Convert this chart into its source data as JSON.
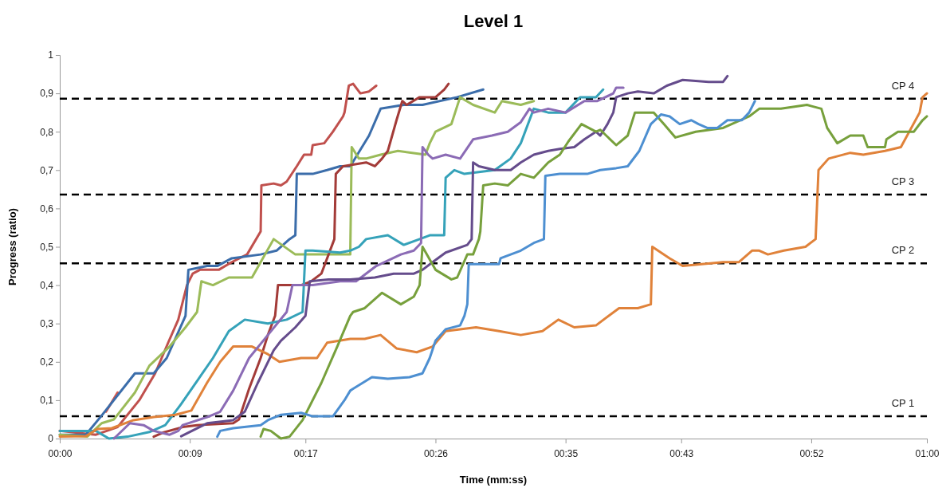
{
  "chart_data": {
    "type": "line",
    "title": "Level 1",
    "xlabel": "Time (mm:ss)",
    "ylabel": "Progress (ratio)",
    "xlim": [
      0,
      60
    ],
    "xticks": [
      {
        "value": 0,
        "label": "00:00"
      },
      {
        "value": 9,
        "label": "00:09"
      },
      {
        "value": 17,
        "label": "00:17"
      },
      {
        "value": 26,
        "label": "00:26"
      },
      {
        "value": 35,
        "label": "00:35"
      },
      {
        "value": 43,
        "label": "00:43"
      },
      {
        "value": 52,
        "label": "00:52"
      },
      {
        "value": 60,
        "label": "01:00"
      }
    ],
    "ylim": [
      0,
      1
    ],
    "yticks": [
      0,
      {
        "value": 0.1,
        "label": "0,1"
      },
      {
        "value": 0.2,
        "label": "0,2"
      },
      {
        "value": 0.3,
        "label": "0,3"
      },
      {
        "value": 0.4,
        "label": "0,4"
      },
      {
        "value": 0.5,
        "label": "0,5"
      },
      {
        "value": 0.6,
        "label": "0,6"
      },
      {
        "value": 0.7,
        "label": "0,7"
      },
      {
        "value": 0.8,
        "label": "0,8"
      },
      {
        "value": 0.9,
        "label": "0,9"
      },
      1
    ],
    "series": [
      {
        "color": "#c0504d",
        "x": [
          0,
          2.5,
          4,
          5.5,
          6.6,
          7.5,
          8.2,
          8.8,
          9.2,
          9.7,
          11,
          11.9,
          12.96,
          13.9,
          13.95,
          14.8,
          15.3,
          15.7,
          16.4,
          16.9,
          17.4,
          17.5,
          18.3,
          18.9,
          19.6,
          19.7,
          20,
          20.3,
          20.8,
          21.4,
          21.9
        ],
        "values": [
          0.02,
          0.01,
          0.03,
          0.1,
          0.17,
          0.25,
          0.31,
          0.4,
          0.43,
          0.44,
          0.44,
          0.46,
          0.48,
          0.54,
          0.66,
          0.665,
          0.66,
          0.67,
          0.71,
          0.74,
          0.74,
          0.765,
          0.77,
          0.8,
          0.84,
          0.85,
          0.92,
          0.925,
          0.9,
          0.905,
          0.92
        ]
      },
      {
        "color": "#d9574a",
        "x": [
          3.2,
          4
        ],
        "values": [
          0.07,
          0.12
        ]
      },
      {
        "color": "#3b6daa",
        "x": [
          0,
          1.8,
          2.9,
          5.2,
          6.5,
          7.4,
          8.7,
          8.9,
          10.2,
          10.9,
          11.9,
          13.9,
          15,
          15.9,
          16.3,
          16.4,
          17.5,
          18.5,
          19.4,
          20.1,
          21.4,
          22.2,
          23.8,
          25.1,
          27.5,
          29.3
        ],
        "values": [
          0.01,
          0.01,
          0.06,
          0.17,
          0.17,
          0.21,
          0.32,
          0.44,
          0.45,
          0.45,
          0.47,
          0.48,
          0.49,
          0.52,
          0.53,
          0.69,
          0.69,
          0.7,
          0.71,
          0.71,
          0.79,
          0.86,
          0.87,
          0.87,
          0.89,
          0.91
        ]
      },
      {
        "color": "#9bbb59",
        "x": [
          0,
          1.9,
          2.9,
          3.75,
          5.2,
          6.2,
          7.6,
          8.7,
          9.5,
          9.8,
          10.6,
          11.7,
          13.3,
          13.9,
          14.8,
          16.3,
          18.8,
          20.1,
          20.2,
          20.7,
          21.2,
          22.2,
          23.4,
          25.3,
          25.6,
          26,
          27.1,
          27.7,
          28.6,
          30.1,
          30.6,
          31.9,
          32.8
        ],
        "values": [
          0.01,
          0.005,
          0.04,
          0.05,
          0.12,
          0.19,
          0.24,
          0.29,
          0.33,
          0.41,
          0.4,
          0.42,
          0.42,
          0.46,
          0.52,
          0.48,
          0.48,
          0.48,
          0.76,
          0.73,
          0.73,
          0.74,
          0.75,
          0.74,
          0.77,
          0.8,
          0.82,
          0.89,
          0.87,
          0.85,
          0.88,
          0.87,
          0.88
        ]
      },
      {
        "color": "#a33b38",
        "x": [
          6.5,
          7.1,
          8.5,
          9.5,
          12,
          12.4,
          13.1,
          13.9,
          14.4,
          14.9,
          15.1,
          15.7,
          16.7,
          17.4,
          18.1,
          18.6,
          19,
          19.1,
          19.6,
          21.2,
          21.8,
          22.3,
          22.7,
          23.3,
          23.7,
          24,
          24.9,
          26,
          26.6,
          26.9
        ],
        "values": [
          0.005,
          0.015,
          0.03,
          0.035,
          0.04,
          0.05,
          0.13,
          0.21,
          0.27,
          0.32,
          0.4,
          0.4,
          0.4,
          0.41,
          0.43,
          0.48,
          0.52,
          0.69,
          0.71,
          0.72,
          0.71,
          0.73,
          0.75,
          0.83,
          0.88,
          0.87,
          0.89,
          0.89,
          0.91,
          0.925
        ]
      },
      {
        "color": "#35a2b9",
        "x": [
          0,
          2.5,
          3.4,
          4.7,
          6.2,
          7.3,
          8.4,
          9.5,
          10.6,
          11.7,
          12.8,
          14.4,
          15.7,
          16.8,
          17,
          17.5,
          19.4,
          20.1,
          20.7,
          21.2,
          22.7,
          23.8,
          24.9,
          25.6,
          26.6,
          26.7,
          27.3,
          28,
          30.1,
          31.2,
          31.9,
          32.8,
          33.8,
          35,
          36,
          37.1,
          37.6
        ],
        "values": [
          0.02,
          0.02,
          0,
          0.005,
          0.017,
          0.035,
          0.09,
          0.15,
          0.21,
          0.28,
          0.31,
          0.3,
          0.31,
          0.33,
          0.49,
          0.49,
          0.485,
          0.49,
          0.5,
          0.52,
          0.53,
          0.505,
          0.52,
          0.53,
          0.53,
          0.68,
          0.7,
          0.69,
          0.7,
          0.73,
          0.77,
          0.86,
          0.85,
          0.85,
          0.89,
          0.89,
          0.91
        ]
      },
      {
        "color": "#e0823a",
        "x": [
          0,
          1.8,
          2.6,
          3.6,
          5.1,
          6.5,
          8,
          9.1,
          10.2,
          11.1,
          12,
          13.3,
          14.4,
          15.2,
          16.7,
          17.8,
          18.5,
          20.1,
          21.1,
          22.2,
          23.3,
          24.7,
          25.8,
          26.7,
          28.8,
          30.4,
          31.9,
          33.4,
          34.5,
          35.6,
          37.1,
          38.7,
          40,
          40.9,
          41,
          42.2,
          43.1,
          45.9,
          47,
          47.9,
          48.4,
          49,
          50.1,
          51.6,
          52.3,
          52.5,
          53.2,
          54.7,
          55.6,
          57.1,
          58.2,
          59.5,
          59.7,
          60
        ],
        "values": [
          0.005,
          0.006,
          0.025,
          0.027,
          0.048,
          0.056,
          0.062,
          0.073,
          0.146,
          0.2,
          0.24,
          0.24,
          0.22,
          0.2,
          0.21,
          0.21,
          0.25,
          0.26,
          0.26,
          0.27,
          0.235,
          0.225,
          0.24,
          0.28,
          0.29,
          0.28,
          0.27,
          0.28,
          0.31,
          0.29,
          0.295,
          0.34,
          0.34,
          0.35,
          0.5,
          0.47,
          0.45,
          0.46,
          0.46,
          0.49,
          0.49,
          0.48,
          0.49,
          0.5,
          0.52,
          0.7,
          0.73,
          0.745,
          0.74,
          0.75,
          0.76,
          0.85,
          0.89,
          0.9
        ]
      },
      {
        "color": "#8b6bb5",
        "x": [
          3.75,
          4.85,
          5.8,
          6.5,
          7.6,
          8.2,
          8.5,
          10.2,
          11.1,
          12,
          13.1,
          14.4,
          15.7,
          16.1,
          17.5,
          19.4,
          20.1,
          20.5,
          21.9,
          23.6,
          24.5,
          25,
          25.1,
          25.5,
          25.8,
          26.7,
          27.7,
          28.6,
          29.9,
          31,
          31.9,
          32.5,
          32.8,
          33.8,
          35,
          36.3,
          37.2,
          38.3,
          38.5,
          39
        ],
        "values": [
          0,
          0.04,
          0.035,
          0.02,
          0.01,
          0.02,
          0.035,
          0.056,
          0.07,
          0.125,
          0.21,
          0.27,
          0.33,
          0.4,
          0.4,
          0.41,
          0.41,
          0.41,
          0.45,
          0.48,
          0.49,
          0.51,
          0.76,
          0.74,
          0.73,
          0.74,
          0.73,
          0.78,
          0.79,
          0.8,
          0.825,
          0.86,
          0.85,
          0.86,
          0.85,
          0.88,
          0.88,
          0.9,
          0.915,
          0.915
        ]
      },
      {
        "color": "#654c8c",
        "x": [
          8.4,
          10.2,
          12,
          12.8,
          13.7,
          14.8,
          15.3,
          16.3,
          17,
          17.3,
          18.6,
          20.1,
          21.8,
          23.1,
          24.5,
          25.1,
          25.8,
          26.7,
          28.2,
          28.5,
          28.6,
          29,
          30.1,
          31.2,
          31.9,
          32.8,
          33.8,
          34.6,
          35.6,
          36.3,
          37.1,
          37.4,
          37.9,
          38.3,
          38.5,
          39.3,
          40,
          41.1,
          42,
          43.1,
          44.9,
          45.9,
          46.2
        ],
        "values": [
          0.006,
          0.04,
          0.048,
          0.07,
          0.145,
          0.23,
          0.255,
          0.29,
          0.32,
          0.41,
          0.415,
          0.415,
          0.42,
          0.43,
          0.43,
          0.44,
          0.46,
          0.485,
          0.505,
          0.52,
          0.72,
          0.71,
          0.7,
          0.7,
          0.72,
          0.74,
          0.75,
          0.755,
          0.76,
          0.78,
          0.8,
          0.79,
          0.82,
          0.85,
          0.89,
          0.9,
          0.905,
          0.9,
          0.92,
          0.935,
          0.93,
          0.93,
          0.945
        ]
      },
      {
        "color": "#77a03c",
        "x": [
          13.9,
          14.1,
          14.6,
          15.3,
          15.9,
          16.8,
          18.1,
          19.2,
          20.1,
          20.3,
          21.1,
          22.3,
          23.6,
          24.5,
          24.9,
          25.1,
          26,
          27.1,
          27.5,
          28.2,
          28.6,
          29,
          29.1,
          29.3,
          30.1,
          31,
          31.9,
          32.8,
          33.8,
          34.6,
          35.2,
          36.1,
          37.1,
          37.4,
          38.5,
          39.3,
          39.8,
          41.1,
          41.8,
          42.6,
          44,
          45.9,
          47.7,
          48.4,
          49.9,
          51.7,
          52.7,
          53.1,
          53.8,
          54.7,
          55.6,
          55.9,
          57.1,
          57.2,
          58,
          59.1,
          59.7,
          60
        ],
        "values": [
          0.005,
          0.025,
          0.02,
          0,
          0.005,
          0.048,
          0.145,
          0.24,
          0.32,
          0.33,
          0.34,
          0.38,
          0.35,
          0.37,
          0.4,
          0.5,
          0.44,
          0.415,
          0.42,
          0.48,
          0.48,
          0.52,
          0.54,
          0.66,
          0.665,
          0.66,
          0.69,
          0.68,
          0.72,
          0.74,
          0.775,
          0.82,
          0.8,
          0.805,
          0.765,
          0.79,
          0.85,
          0.85,
          0.82,
          0.785,
          0.8,
          0.81,
          0.84,
          0.86,
          0.86,
          0.87,
          0.86,
          0.81,
          0.77,
          0.79,
          0.79,
          0.76,
          0.76,
          0.78,
          0.8,
          0.8,
          0.83,
          0.84
        ]
      },
      {
        "color": "#4d8fd1",
        "x": [
          10.9,
          11.1,
          12,
          13.9,
          14.4,
          15.3,
          16.7,
          17.5,
          18.9,
          19.7,
          20.1,
          20.3,
          21.6,
          22.7,
          24.2,
          25.1,
          25.6,
          26,
          26.7,
          27.7,
          28,
          28.2,
          28.3,
          30.4,
          30.5,
          31.9,
          32.8,
          33.5,
          33.6,
          34.6,
          36.5,
          37.4,
          38.5,
          39.3,
          40.1,
          40.9,
          41.6,
          42.2,
          42.9,
          43.7,
          44.2,
          44.8,
          45.5,
          46.2,
          47.2,
          47.7,
          48.1
        ],
        "values": [
          0.005,
          0.02,
          0.027,
          0.035,
          0.048,
          0.062,
          0.067,
          0.058,
          0.058,
          0.1,
          0.125,
          0.13,
          0.16,
          0.156,
          0.16,
          0.17,
          0.21,
          0.255,
          0.285,
          0.295,
          0.32,
          0.35,
          0.455,
          0.455,
          0.47,
          0.49,
          0.51,
          0.52,
          0.685,
          0.69,
          0.69,
          0.7,
          0.705,
          0.71,
          0.75,
          0.82,
          0.845,
          0.84,
          0.82,
          0.83,
          0.82,
          0.81,
          0.81,
          0.83,
          0.83,
          0.85,
          0.88
        ]
      }
    ],
    "ref_lines": [
      {
        "axis": "y",
        "value": 0.058,
        "label": "CP 1",
        "color": "#000000",
        "line_style": "dashed"
      },
      {
        "axis": "y",
        "value": 0.457,
        "label": "CP 2",
        "color": "#000000",
        "line_style": "dashed"
      },
      {
        "axis": "y",
        "value": 0.636,
        "label": "CP 3",
        "color": "#000000",
        "line_style": "dashed"
      },
      {
        "axis": "y",
        "value": 0.886,
        "label": "CP 4",
        "color": "#000000",
        "line_style": "dashed"
      }
    ]
  }
}
